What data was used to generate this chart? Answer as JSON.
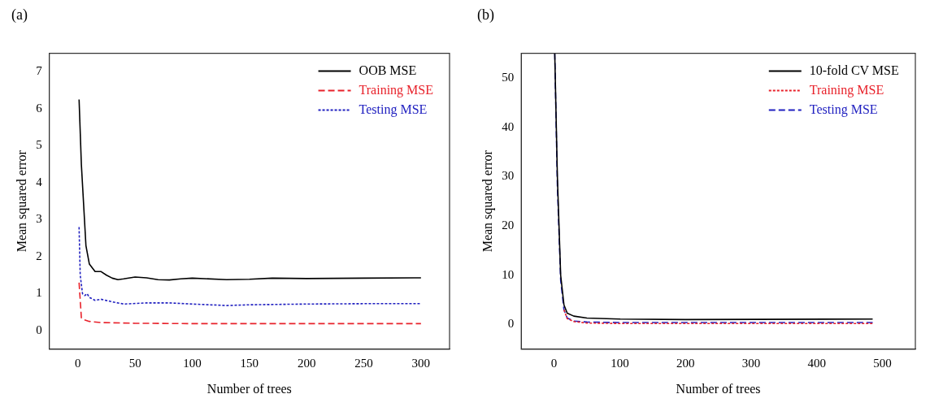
{
  "chart_data": [
    {
      "type": "line",
      "title": "(a)",
      "xlabel": "Number of trees",
      "ylabel": "Mean squared error",
      "xlim": [
        -25,
        325
      ],
      "xticks": [
        0,
        50,
        100,
        150,
        200,
        250,
        300
      ],
      "ylim": [
        -0.5,
        7.5
      ],
      "yticks": [
        0,
        1,
        2,
        3,
        4,
        5,
        6,
        7
      ],
      "legend": "top right",
      "marker": "none",
      "grid": false,
      "series": [
        {
          "name": "OOB MSE",
          "color": "#000000",
          "line_style": "solid",
          "x": [
            1,
            3,
            5,
            7,
            10,
            15,
            20,
            25,
            30,
            35,
            40,
            50,
            60,
            70,
            80,
            90,
            100,
            130,
            150,
            170,
            200,
            250,
            300
          ],
          "values": [
            6.25,
            4.5,
            3.4,
            2.3,
            1.8,
            1.6,
            1.6,
            1.5,
            1.42,
            1.38,
            1.4,
            1.45,
            1.43,
            1.38,
            1.37,
            1.4,
            1.42,
            1.38,
            1.39,
            1.42,
            1.41,
            1.42,
            1.43
          ]
        },
        {
          "name": "Training MSE",
          "color": "#e8212a",
          "line_style": "dashed",
          "x": [
            1,
            3,
            5,
            10,
            20,
            50,
            100,
            300
          ],
          "values": [
            1.3,
            0.35,
            0.3,
            0.25,
            0.22,
            0.2,
            0.19,
            0.19
          ]
        },
        {
          "name": "Testing MSE",
          "color": "#2020c0",
          "line_style": "dotted",
          "x": [
            1,
            2,
            4,
            6,
            8,
            10,
            15,
            20,
            30,
            40,
            60,
            80,
            100,
            130,
            150,
            200,
            250,
            300
          ],
          "values": [
            2.8,
            1.5,
            1.0,
            0.95,
            1.0,
            0.9,
            0.82,
            0.85,
            0.78,
            0.72,
            0.75,
            0.75,
            0.72,
            0.68,
            0.7,
            0.72,
            0.73,
            0.73
          ]
        }
      ]
    },
    {
      "type": "line",
      "title": "(b)",
      "xlabel": "Number of trees",
      "ylabel": "Mean squared error",
      "xlim": [
        -50,
        550
      ],
      "xticks": [
        0,
        100,
        200,
        300,
        400,
        500
      ],
      "ylim": [
        -5,
        55
      ],
      "yticks": [
        0,
        10,
        20,
        30,
        40,
        50
      ],
      "legend": "top right",
      "marker": "none",
      "grid": false,
      "series": [
        {
          "name": "10-fold CV MSE",
          "color": "#000000",
          "line_style": "solid",
          "x": [
            1,
            5,
            10,
            15,
            20,
            30,
            50,
            100,
            200,
            485
          ],
          "values": [
            55,
            30,
            10,
            4,
            2.3,
            1.7,
            1.3,
            1.1,
            1.0,
            1.1
          ]
        },
        {
          "name": "Training MSE",
          "color": "#e8212a",
          "line_style": "dotted",
          "x": [
            15,
            20,
            30,
            50,
            100,
            485
          ],
          "values": [
            3,
            1.2,
            0.6,
            0.3,
            0.2,
            0.2
          ]
        },
        {
          "name": "Testing MSE",
          "color": "#2020c0",
          "line_style": "dashed",
          "x": [
            1,
            5,
            10,
            15,
            20,
            30,
            50,
            100,
            485
          ],
          "values": [
            55,
            28,
            9,
            3,
            1.3,
            0.7,
            0.5,
            0.4,
            0.4
          ]
        }
      ]
    }
  ]
}
